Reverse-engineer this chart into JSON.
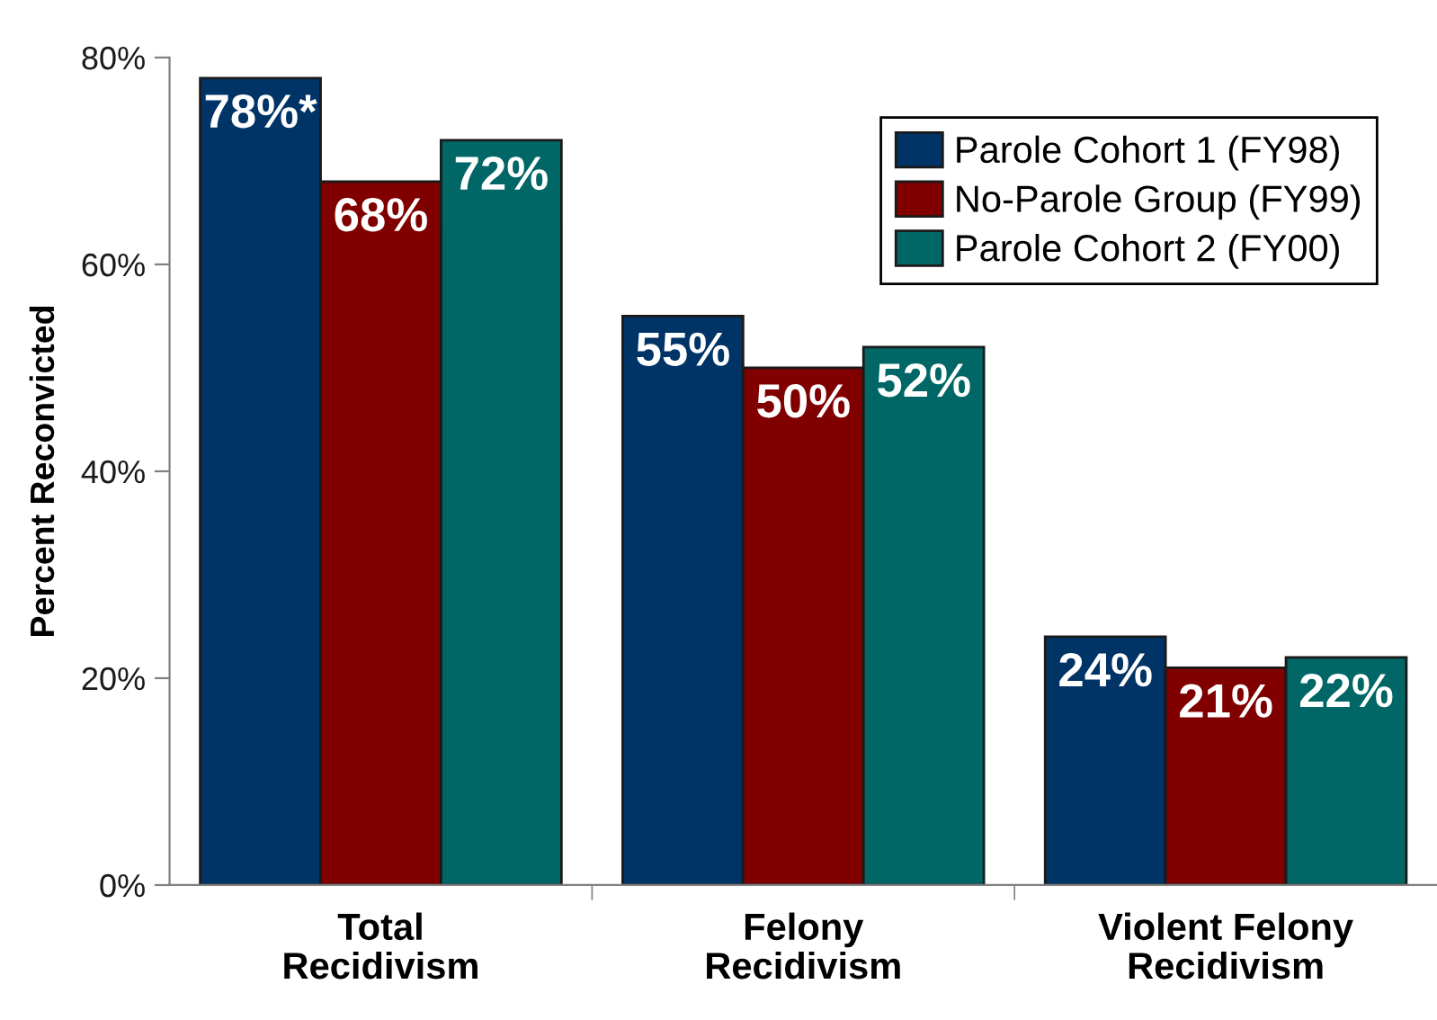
{
  "chart_data": {
    "type": "bar",
    "ylabel": "Percent Reconvicted",
    "categories": [
      "Total\nRecidivism",
      "Felony\nRecidivism",
      "Violent Felony\nRecidivism"
    ],
    "series": [
      {
        "name": "Parole Cohort 1 (FY98)",
        "color": "#003366",
        "values": [
          78,
          55,
          24
        ],
        "value_labels": [
          "78%*",
          "55%",
          "24%"
        ]
      },
      {
        "name": "No-Parole Group (FY99)",
        "color": "#800000",
        "values": [
          68,
          50,
          21
        ],
        "value_labels": [
          "68%",
          "50%",
          "21%"
        ]
      },
      {
        "name": "Parole Cohort 2 (FY00)",
        "color": "#006666",
        "values": [
          72,
          52,
          22
        ],
        "value_labels": [
          "72%",
          "52%",
          "22%"
        ]
      }
    ],
    "ylim": [
      0,
      80
    ],
    "yticks": [
      {
        "value": 0,
        "label": "0%"
      },
      {
        "value": 20,
        "label": "20%"
      },
      {
        "value": 40,
        "label": "40%"
      },
      {
        "value": 60,
        "label": "60%"
      },
      {
        "value": 80,
        "label": "80%"
      }
    ],
    "legend": "top right"
  }
}
